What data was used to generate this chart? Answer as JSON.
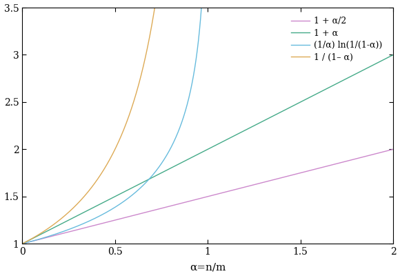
{
  "xlabel": "α=n/m",
  "xlim": [
    0,
    2
  ],
  "ylim": [
    1,
    3.5
  ],
  "xticks": [
    0,
    0.5,
    1.0,
    1.5,
    2.0
  ],
  "yticks": [
    1.0,
    1.5,
    2.0,
    2.5,
    3.0,
    3.5
  ],
  "legend_labels": [
    "1 + α/2",
    "1 + α",
    "(1/α) ln(1/(1-α))",
    "1 / (1– α)"
  ],
  "line_colors": [
    "#cc88cc",
    "#44aa88",
    "#66bbdd",
    "#ddaa55"
  ],
  "figsize": [
    5.8,
    4.0
  ],
  "dpi": 100
}
